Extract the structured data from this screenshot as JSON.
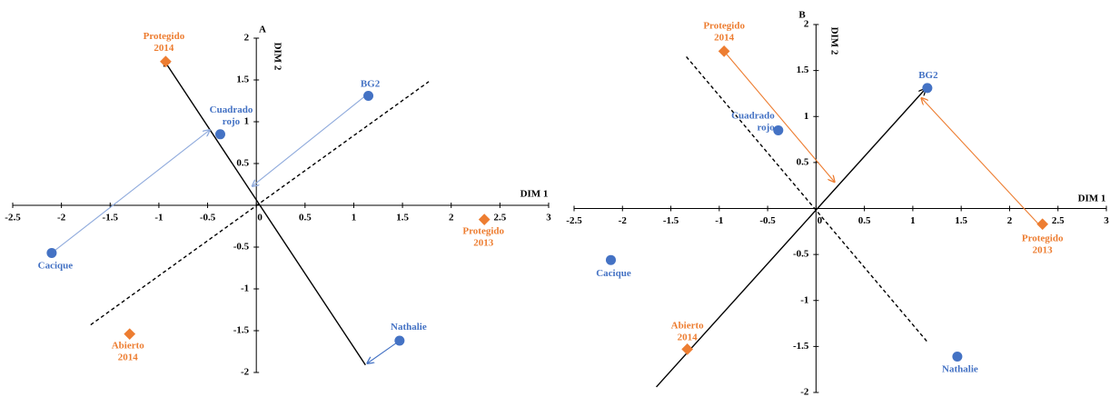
{
  "chart_data": [
    {
      "type": "scatter",
      "title": "A",
      "x_label": "DIM 1",
      "y_label": "DIM 2",
      "xlim": [
        -2.5,
        3
      ],
      "ylim": [
        -2,
        2
      ],
      "xticks": [
        -2.5,
        -2,
        -1.5,
        -1,
        -0.5,
        0,
        0.5,
        1,
        1.5,
        2,
        2.5,
        3
      ],
      "yticks": [
        -2,
        -1.5,
        -1,
        -0.5,
        0,
        0.5,
        1,
        1.5,
        2
      ],
      "series": [
        {
          "marker": "circle",
          "color": "#4472c4",
          "labels": [
            "BG2",
            "Cuadrado\nrojo",
            "Cacique",
            "Nathalie"
          ],
          "x": [
            1.15,
            -0.37,
            -2.1,
            1.47
          ],
          "y": [
            1.31,
            0.85,
            -0.57,
            -1.62
          ]
        },
        {
          "marker": "diamond",
          "color": "#ed7d31",
          "labels": [
            "Protegido\n2014",
            "Protegido\n2013",
            "Abierto\n2014"
          ],
          "x": [
            -0.93,
            2.34,
            -1.3
          ],
          "y": [
            1.72,
            -0.17,
            -1.54
          ]
        }
      ],
      "lines": [
        {
          "x": [
            1.12,
            -0.95
          ],
          "y": [
            -1.91,
            1.74
          ],
          "color": "#000000",
          "dashed": false,
          "arrow": true
        },
        {
          "x": [
            -1.7,
            1.77
          ],
          "y": [
            -1.43,
            1.48
          ],
          "color": "#000000",
          "dashed": true,
          "arrow": false
        },
        {
          "x": [
            -2.1,
            -0.48
          ],
          "y": [
            -0.57,
            0.9
          ],
          "color": "#8faadc",
          "dashed": false,
          "arrow": true
        },
        {
          "x": [
            1.12,
            -0.04
          ],
          "y": [
            1.31,
            0.23
          ],
          "color": "#8faadc",
          "dashed": false,
          "arrow": true
        },
        {
          "x": [
            1.47,
            1.14
          ],
          "y": [
            -1.62,
            -1.89
          ],
          "color": "#4472c4",
          "dashed": false,
          "arrow": true
        }
      ]
    },
    {
      "type": "scatter",
      "title": "B",
      "x_label": "DIM 1",
      "y_label": "DIM 2",
      "xlim": [
        -2.5,
        3
      ],
      "ylim": [
        -2,
        2
      ],
      "xticks": [
        -2.5,
        -2,
        -1.5,
        -1,
        -0.5,
        0,
        0.5,
        1,
        1.5,
        2,
        2.5,
        3
      ],
      "yticks": [
        -2,
        -1.5,
        -1,
        -0.5,
        0,
        0.5,
        1,
        1.5,
        2
      ],
      "series": [
        {
          "marker": "circle",
          "color": "#4472c4",
          "labels": [
            "BG2",
            "Cuadrado\nrojo",
            "Cacique",
            "Nathalie"
          ],
          "x": [
            1.15,
            -0.39,
            -2.12,
            1.46
          ],
          "y": [
            1.31,
            0.85,
            -0.56,
            -1.61
          ]
        },
        {
          "marker": "diamond",
          "color": "#ed7d31",
          "labels": [
            "Protegido\n2014",
            "Protegido\n2013",
            "Abierto\n2014"
          ],
          "x": [
            -0.95,
            2.34,
            -1.33
          ],
          "y": [
            1.71,
            -0.17,
            -1.53
          ]
        }
      ],
      "lines": [
        {
          "x": [
            -1.65,
            1.13
          ],
          "y": [
            -1.94,
            1.3
          ],
          "color": "#000000",
          "dashed": false,
          "arrow": true
        },
        {
          "x": [
            -1.34,
            1.15
          ],
          "y": [
            1.65,
            -1.45
          ],
          "color": "#000000",
          "dashed": true,
          "arrow": false
        },
        {
          "x": [
            -0.95,
            0.19
          ],
          "y": [
            1.71,
            0.29
          ],
          "color": "#ed7d31",
          "dashed": false,
          "arrow": true
        },
        {
          "x": [
            2.3,
            1.09
          ],
          "y": [
            -0.17,
            1.2
          ],
          "color": "#ed7d31",
          "dashed": false,
          "arrow": true
        }
      ]
    }
  ]
}
